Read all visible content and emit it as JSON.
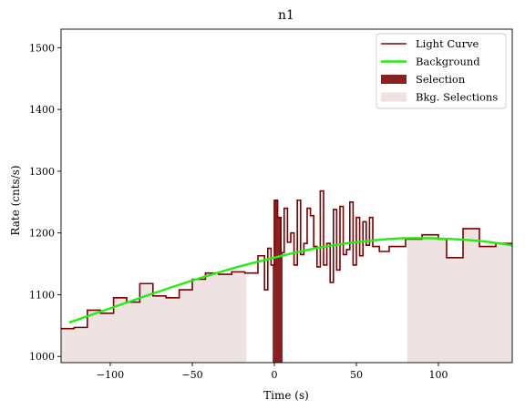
{
  "chart_data": {
    "type": "line",
    "title": "n1",
    "xlabel": "Time (s)",
    "ylabel": "Rate (cnts/s)",
    "xlim": [
      -130,
      145
    ],
    "ylim": [
      990,
      1530
    ],
    "xticks": [
      -100,
      -50,
      0,
      50,
      100
    ],
    "yticks": [
      1000,
      1100,
      1200,
      1300,
      1400,
      1500
    ],
    "legend_position": "top-right",
    "legend": [
      "Light Curve",
      "Background",
      "Selection",
      "Bkg. Selections"
    ],
    "colors": {
      "light_curve": "#7b0000",
      "background": "#22ee11",
      "selection": "#8b2020",
      "bkg_selection": "#efe2e2"
    },
    "series": [
      {
        "name": "Light Curve",
        "type": "step",
        "x": [
          -130,
          -122,
          -114,
          -106,
          -98,
          -90,
          -82,
          -74,
          -66,
          -58,
          -50,
          -42,
          -34,
          -26,
          -18,
          -10,
          -6,
          -4,
          -2,
          0,
          2,
          4,
          6,
          8,
          10,
          12,
          14,
          16,
          18,
          20,
          22,
          24,
          26,
          28,
          30,
          32,
          34,
          36,
          38,
          40,
          42,
          44,
          46,
          48,
          50,
          52,
          54,
          56,
          58,
          60,
          62,
          64,
          70,
          80,
          90,
          100,
          105,
          115,
          125,
          135,
          145
        ],
        "y": [
          1045,
          1047,
          1075,
          1070,
          1095,
          1088,
          1118,
          1098,
          1095,
          1108,
          1125,
          1135,
          1133,
          1137,
          1135,
          1163,
          1108,
          1175,
          1148,
          1253,
          1225,
          1168,
          1240,
          1185,
          1200,
          1148,
          1253,
          1165,
          1183,
          1240,
          1228,
          1178,
          1145,
          1268,
          1148,
          1183,
          1120,
          1238,
          1140,
          1243,
          1165,
          1173,
          1250,
          1148,
          1225,
          1163,
          1218,
          1180,
          1225,
          1178,
          1178,
          1170,
          1178,
          1190,
          1197,
          1190,
          1160,
          1207,
          1178,
          1183,
          1183
        ]
      },
      {
        "name": "Background",
        "type": "line",
        "x": [
          -125,
          -100,
          -75,
          -50,
          -25,
          0,
          25,
          50,
          75,
          100,
          125,
          145
        ],
        "y": [
          1055,
          1078,
          1101,
          1123,
          1143,
          1160,
          1175,
          1185,
          1191,
          1191,
          1187,
          1180
        ]
      }
    ],
    "selection": {
      "x_start": -1,
      "x_end": 5,
      "label": "Selection"
    },
    "bkg_selections": [
      {
        "x_start": -130,
        "x_end": -17
      },
      {
        "x_start": 81,
        "x_end": 145
      }
    ]
  }
}
